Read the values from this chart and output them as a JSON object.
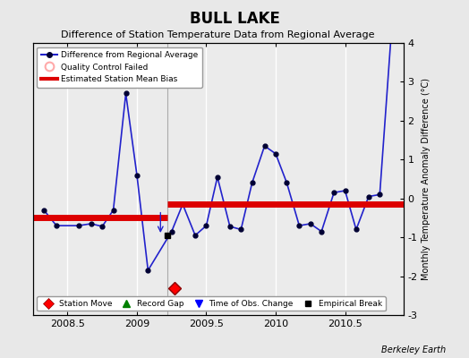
{
  "title": "BULL LAKE",
  "subtitle": "Difference of Station Temperature Data from Regional Average",
  "ylabel_right": "Monthly Temperature Anomaly Difference (°C)",
  "credit": "Berkeley Earth",
  "xlim": [
    2008.25,
    2010.92
  ],
  "ylim": [
    -3.0,
    4.0
  ],
  "yticks": [
    -3,
    -2,
    -1,
    0,
    1,
    2,
    3,
    4
  ],
  "xticks": [
    2008.5,
    2009.0,
    2009.5,
    2010.0,
    2010.5
  ],
  "xticklabels": [
    "2008.5",
    "2009",
    "2009.5",
    "2010",
    "2010.5"
  ],
  "bg_color": "#e8e8e8",
  "plot_bg_color": "#ebebeb",
  "grid_color": "white",
  "line_color": "#2222cc",
  "marker_color": "#000033",
  "bias_color": "#dd0000",
  "station_move_x": 2009.27,
  "station_move_y": -2.3,
  "vertical_line_x": 2009.22,
  "data_x": [
    2008.33,
    2008.42,
    2008.58,
    2008.67,
    2008.75,
    2008.83,
    2008.92,
    2009.0,
    2009.08,
    2009.25,
    2009.33,
    2009.42,
    2009.5,
    2009.58,
    2009.67,
    2009.75,
    2009.83,
    2009.92,
    2010.0,
    2010.08,
    2010.17,
    2010.25,
    2010.33,
    2010.42,
    2010.5,
    2010.58,
    2010.67,
    2010.75,
    2010.83
  ],
  "data_y": [
    -0.3,
    -0.7,
    -0.7,
    -0.65,
    -0.72,
    -0.3,
    2.7,
    0.6,
    -1.85,
    -0.85,
    -0.15,
    -0.95,
    -0.7,
    0.55,
    -0.72,
    -0.8,
    0.4,
    1.35,
    1.15,
    0.4,
    -0.7,
    -0.65,
    -0.85,
    0.15,
    0.2,
    -0.8,
    0.05,
    0.1,
    4.1
  ],
  "bias_segments": [
    {
      "x": [
        2008.25,
        2009.22
      ],
      "y": [
        -0.5,
        -0.5
      ]
    },
    {
      "x": [
        2009.22,
        2010.92
      ],
      "y": [
        -0.15,
        -0.15
      ]
    }
  ],
  "empirical_break_x": 2009.22,
  "empirical_break_y": -0.95,
  "time_obs_x": 2009.17,
  "time_obs_y_top": -0.3,
  "time_obs_y_bot": -0.95
}
